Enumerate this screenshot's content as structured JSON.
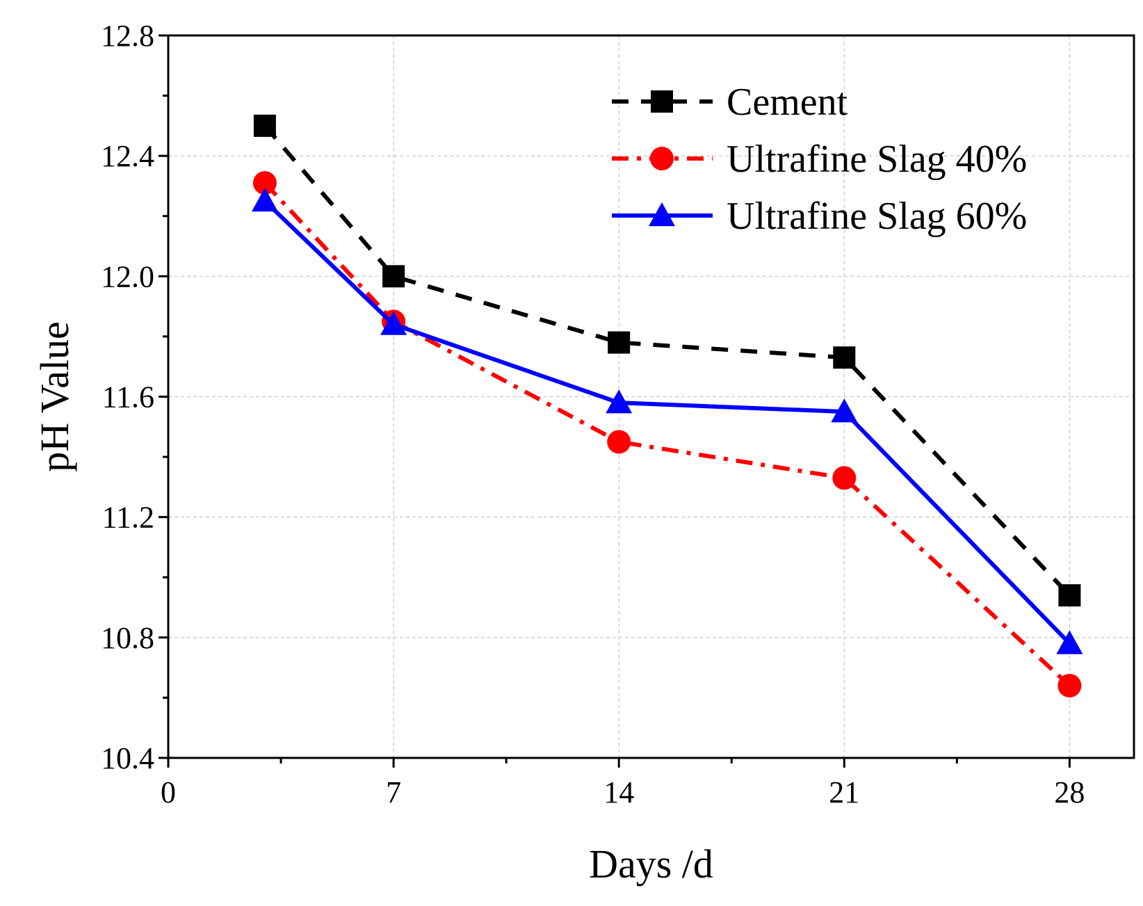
{
  "chart_data": {
    "type": "line",
    "xlabel": "Days /d",
    "ylabel": "pH Value",
    "xlim": [
      0,
      30
    ],
    "ylim": [
      10.4,
      12.8
    ],
    "xticks": [
      0,
      7,
      14,
      21,
      28
    ],
    "xtick_labels": [
      "0",
      "7",
      "14",
      "21",
      "28"
    ],
    "xminor_ticks": [
      3.5,
      10.5,
      17.5,
      24.5
    ],
    "yticks": [
      10.4,
      10.8,
      11.2,
      11.6,
      12.0,
      12.4,
      12.8
    ],
    "ytick_labels": [
      "10.4",
      "10.8",
      "11.2",
      "11.6",
      "12.0",
      "12.4",
      "12.8"
    ],
    "yminor_ticks": [
      10.6,
      11.0,
      11.4,
      11.8,
      12.2,
      12.6
    ],
    "grid": true,
    "legend_position": "top-right",
    "series": [
      {
        "name": "Cement",
        "x": [
          3,
          7,
          14,
          21,
          28
        ],
        "values": [
          12.5,
          12.0,
          11.78,
          11.73,
          10.94
        ],
        "color": "#000000",
        "line_style": "dashed",
        "marker": "square"
      },
      {
        "name": "Ultrafine Slag 40%",
        "x": [
          3,
          7,
          14,
          21,
          28
        ],
        "values": [
          12.31,
          11.85,
          11.45,
          11.33,
          10.64
        ],
        "color": "#ff0000",
        "line_style": "dash-dot",
        "marker": "circle"
      },
      {
        "name": "Ultrafine Slag 60%",
        "x": [
          3,
          7,
          14,
          21,
          28
        ],
        "values": [
          12.25,
          11.84,
          11.58,
          11.55,
          10.78
        ],
        "color": "#0000ff",
        "line_style": "solid",
        "marker": "triangle"
      }
    ]
  }
}
